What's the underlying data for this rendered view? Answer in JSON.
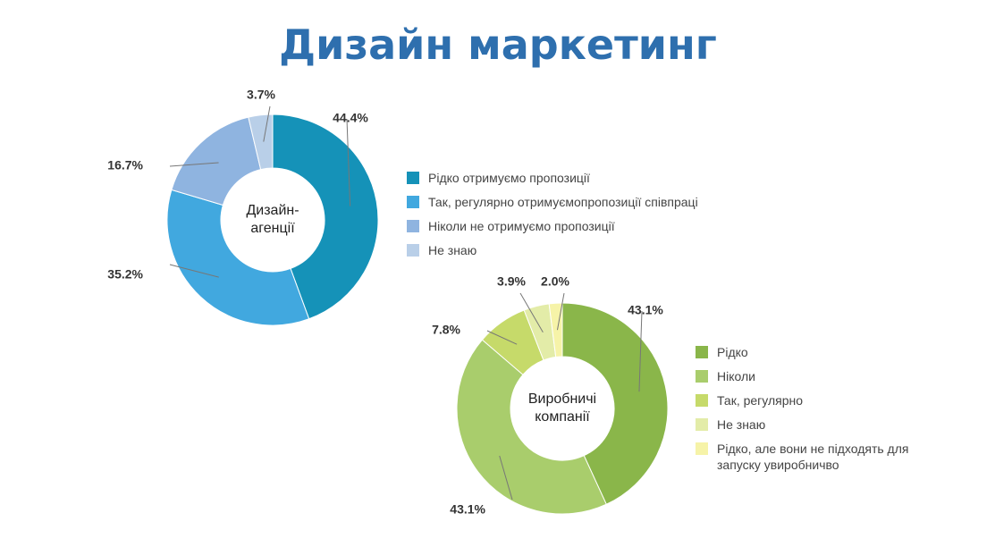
{
  "title": "Дизайн маркетинг",
  "chart_data": [
    {
      "type": "donut",
      "center_label": [
        "Дизайн-",
        "агенції"
      ],
      "categories": [
        "Рідко отримуємо пропозиції",
        "Так, регулярно отримуємопропозиції співпраці",
        "Ніколи не отримуємо пропозиції",
        "Не знаю"
      ],
      "values": [
        44.4,
        35.2,
        16.7,
        3.7
      ],
      "value_labels": [
        "44.4%",
        "35.2%",
        "16.7%",
        "3.7%"
      ],
      "colors": [
        "#1592b8",
        "#41a8df",
        "#8fb4e0",
        "#b9cfe8"
      ]
    },
    {
      "type": "donut",
      "center_label": [
        "Виробничі",
        "компанії"
      ],
      "categories": [
        "Рідко",
        "Ніколи",
        "Так, регулярно",
        "Не знаю",
        "Рідко, але вони не підходять для запуску увиробничво"
      ],
      "values": [
        43.1,
        43.1,
        7.8,
        3.9,
        2.0
      ],
      "value_labels": [
        "43.1%",
        "43.1%",
        "7.8%",
        "3.9%",
        "2.0%"
      ],
      "colors": [
        "#8ab64a",
        "#a9cd6c",
        "#c6da6a",
        "#e3eca8",
        "#f6f3a8"
      ]
    }
  ]
}
